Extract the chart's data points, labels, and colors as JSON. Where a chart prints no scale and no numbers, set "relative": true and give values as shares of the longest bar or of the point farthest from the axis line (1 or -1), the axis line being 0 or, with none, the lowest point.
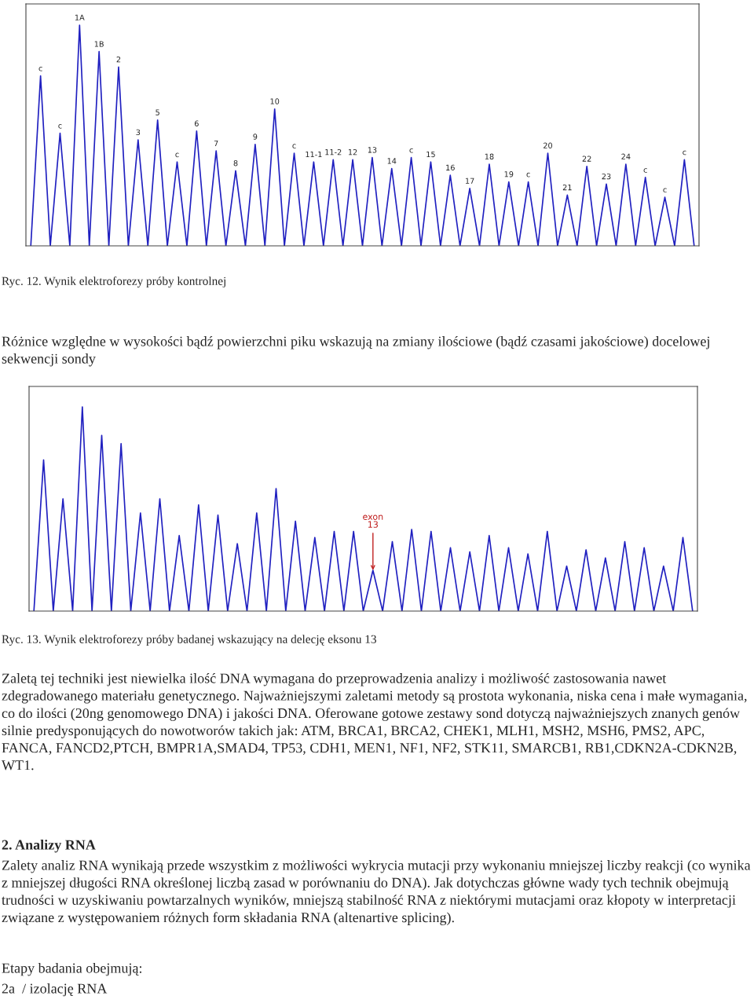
{
  "chart_data": [
    {
      "type": "line",
      "relative": true,
      "marker": "none",
      "line_style": "solid",
      "categories": [
        null,
        null,
        null,
        null,
        null,
        null,
        null,
        null,
        null,
        null,
        null,
        null,
        null,
        null,
        null,
        null,
        null,
        null,
        null,
        null,
        null,
        null,
        null,
        null,
        null,
        null,
        null,
        null,
        null,
        null,
        null,
        null,
        null,
        null,
        null,
        null,
        null,
        null,
        null,
        null,
        null,
        null,
        null,
        null,
        null,
        null,
        null,
        null,
        null,
        null,
        null,
        null,
        null,
        null,
        null,
        null,
        null,
        null,
        null,
        null,
        null,
        null,
        null,
        null,
        null,
        null,
        null,
        null,
        null
      ],
      "series": [
        {
          "color": "#2020c0",
          "values": [
            0,
            0.77,
            0,
            0.51,
            0,
            1.0,
            0,
            0.88,
            0,
            0.81,
            0,
            0.48,
            0,
            0.57,
            0,
            0.38,
            0,
            0.52,
            0,
            0.43,
            0,
            0.34,
            0,
            0.46,
            0,
            0.62,
            0,
            0.42,
            0,
            0.38,
            0,
            0.39,
            0,
            0.39,
            0,
            0.4,
            0,
            0.35,
            0,
            0.4,
            0,
            0.38,
            0,
            0.32,
            0,
            0.26,
            0,
            0.37,
            0,
            0.29,
            0,
            0.29,
            0,
            0.42,
            0,
            0.23,
            0,
            0.36,
            0,
            0.28,
            0,
            0.37,
            0,
            0.31,
            0,
            0.22,
            0,
            0.39,
            0
          ]
        }
      ],
      "annotations": [
        "Ryc. 12. Wynik elektroforezy próby kontrolnej",
        "Różnice względne w wysokości bądź powierzchni piku wskazują na zmiany ilościowe (bądź czasami jakościowe) docelowej sekwencji sondy",
        {
          "text": "c",
          "y": 0.77
        },
        {
          "text": "c",
          "y": 0.51
        },
        {
          "text": "1A",
          "y": 1.0
        },
        {
          "text": "1B",
          "y": 0.88
        },
        {
          "text": "2",
          "y": 0.81
        },
        {
          "text": "3",
          "y": 0.48
        },
        {
          "text": "5",
          "y": 0.57
        },
        {
          "text": "c",
          "y": 0.38
        },
        {
          "text": "6",
          "y": 0.52
        },
        {
          "text": "7",
          "y": 0.43
        },
        {
          "text": "8",
          "y": 0.34
        },
        {
          "text": "9",
          "y": 0.46
        },
        {
          "text": "10",
          "y": 0.62
        },
        {
          "text": "c",
          "y": 0.42
        },
        {
          "text": "11-1",
          "y": 0.38
        },
        {
          "text": "11-2",
          "y": 0.39
        },
        {
          "text": "12",
          "y": 0.39
        },
        {
          "text": "13",
          "y": 0.4
        },
        {
          "text": "14",
          "y": 0.35
        },
        {
          "text": "c",
          "y": 0.4
        },
        {
          "text": "15",
          "y": 0.38
        },
        {
          "text": "16",
          "y": 0.32
        },
        {
          "text": "17",
          "y": 0.26
        },
        {
          "text": "18",
          "y": 0.37
        },
        {
          "text": "19",
          "y": 0.29
        },
        {
          "text": "c",
          "y": 0.29
        },
        {
          "text": "20",
          "y": 0.42
        },
        {
          "text": "21",
          "y": 0.23
        },
        {
          "text": "22",
          "y": 0.36
        },
        {
          "text": "23",
          "y": 0.28
        },
        {
          "text": "24",
          "y": 0.37
        },
        {
          "text": "c",
          "y": 0.31
        },
        {
          "text": "c",
          "y": 0.22
        },
        {
          "text": "c",
          "y": 0.39
        }
      ]
    },
    {
      "type": "line",
      "relative": true,
      "marker": "none",
      "line_style": "solid",
      "categories": [
        null,
        null,
        null,
        null,
        null,
        null,
        null,
        null,
        null,
        null,
        null,
        null,
        null,
        null,
        null,
        null,
        null,
        null,
        null,
        null,
        null,
        null,
        null,
        null,
        null,
        null,
        null,
        null,
        null,
        null,
        null,
        null,
        null,
        null,
        null,
        null,
        null,
        null,
        null,
        null,
        null,
        null,
        null,
        null,
        null,
        null,
        null,
        null,
        null,
        null,
        null,
        null,
        null,
        null,
        null,
        null,
        null,
        null,
        null,
        null,
        null,
        null,
        null,
        null,
        null,
        null,
        null,
        null,
        null
      ],
      "series": [
        {
          "color": "#2020c0",
          "values": [
            0,
            0.74,
            0,
            0.55,
            0,
            1.0,
            0,
            0.86,
            0,
            0.82,
            0,
            0.48,
            0,
            0.55,
            0,
            0.37,
            0,
            0.52,
            0,
            0.47,
            0,
            0.33,
            0,
            0.48,
            0,
            0.6,
            0,
            0.44,
            0,
            0.36,
            0,
            0.39,
            0,
            0.39,
            0,
            0.2,
            0,
            0.34,
            0,
            0.4,
            0,
            0.39,
            0,
            0.31,
            0,
            0.29,
            0,
            0.37,
            0,
            0.31,
            0,
            0.28,
            0,
            0.39,
            0,
            0.22,
            0,
            0.3,
            0,
            0.26,
            0,
            0.34,
            0,
            0.31,
            0,
            0.22,
            0,
            0.36,
            0
          ]
        }
      ],
      "annotations": [
        "Ryc. 13. Wynik elektroforezy próby badanej wskazujący na delecję eksonu 13",
        "Zaletą tej techniki jest niewielka ilość DNA wymagana do przeprowadzenia analizy i możliwość zastosowania nawet zdegradowanego materiału genetycznego. Najważniejszymi zaletami metody są prostota wykonania, niska cena i małe wymagania, co do ilości (20ng genomowego DNA) i jakości DNA. Oferowane gotowe zestawy sond dotyczą najważniejszych znanych genów silnie predysponujących do nowotworów takich jak: ATM, BRCA1, BRCA2, CHEK1, MLH1, MSH2, MSH6, PMS2, APC, FANCA, FANCD2,PTCH, BMPR1A,SMAD4, TP53, CDH1, MEN1, NF1, NF2, STK11, SMARCB1, RB1,CDKN2A-CDKN2B, WT1.",
        "2. Analizy RNA",
        "Zalety analiz RNA wynikają przede wszystkim z możliwości wykrycia mutacji przy wykonaniu mniejszej liczby reakcji (co wynika z mniejszej długości RNA określonej liczbą zasad w porównaniu do DNA). Jak dotychczas główne wady tych technik obejmują trudności w uzyskiwaniu powtarzalnych wyników, mniejszą stabilność RNA z niektórymi mutacjami oraz kłopoty w interpretacji związane z występowaniem różnych form składania RNA (altenartive splicing).",
        "Etapy badania obejmują:",
        "2a  / izolację RNA",
        {
          "text": "exon 13",
          "y": 0.2
        }
      ]
    }
  ]
}
